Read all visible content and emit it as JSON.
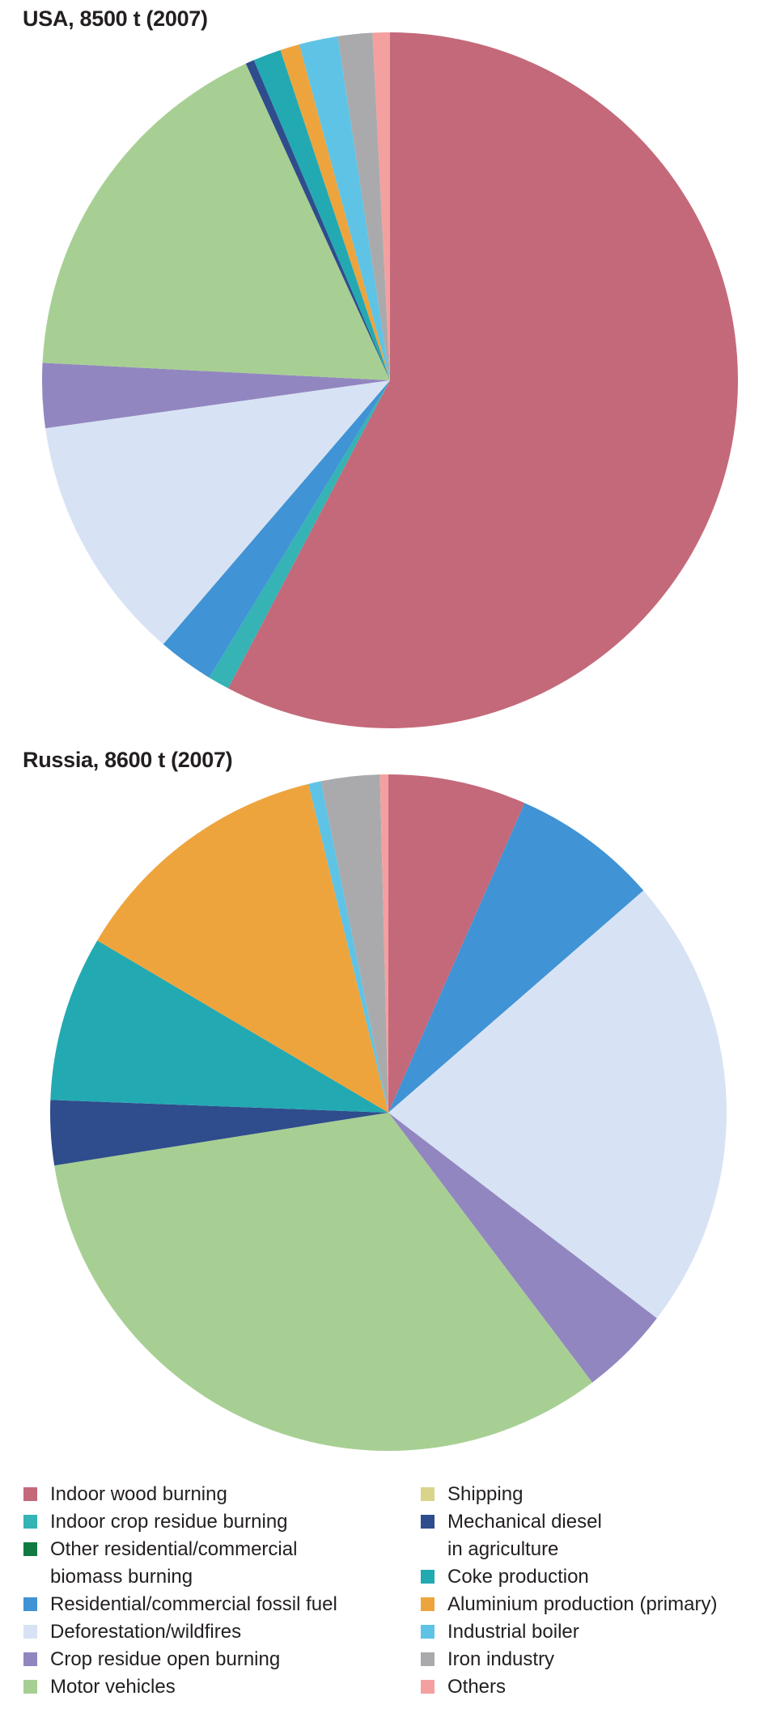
{
  "page": {
    "background": "#ffffff",
    "text_color": "#231f20"
  },
  "chart_data": [
    {
      "type": "pie",
      "id": "usa",
      "title": "USA, 8500 t (2007)",
      "country": "USA",
      "total": "8500 t",
      "year": "(2007)",
      "units": "percent of total",
      "start_angle_deg": 0,
      "direction": "clockwise",
      "slices": [
        {
          "label": "Indoor wood burning",
          "percent": 57.7,
          "color": "#c4697a"
        },
        {
          "label": "Indoor crop residue burning",
          "percent": 1.0,
          "color": "#35b3b5"
        },
        {
          "label": "Residential/commercial fossil fuel",
          "percent": 2.6,
          "color": "#4093d4"
        },
        {
          "label": "Deforestation/wildfires",
          "percent": 11.5,
          "color": "#d7e3f4"
        },
        {
          "label": "Crop residue open burning",
          "percent": 3.0,
          "color": "#9286c0"
        },
        {
          "label": "Motor vehicles",
          "percent": 17.4,
          "color": "#a7cf93"
        },
        {
          "label": "Mechanical diesel in agriculture",
          "percent": 0.4,
          "color": "#2f4c8c"
        },
        {
          "label": "Coke production",
          "percent": 1.3,
          "color": "#23a9b2"
        },
        {
          "label": "Aluminium production (primary)",
          "percent": 0.9,
          "color": "#eea43d"
        },
        {
          "label": "Industrial boiler",
          "percent": 1.8,
          "color": "#5fc3e5"
        },
        {
          "label": "Iron industry",
          "percent": 1.6,
          "color": "#aaaaac"
        },
        {
          "label": "Others",
          "percent": 0.8,
          "color": "#f4a0a0"
        }
      ]
    },
    {
      "type": "pie",
      "id": "russia",
      "title": "Russia, 8600 t (2007)",
      "country": "Russia",
      "total": "8600 t",
      "year": "(2007)",
      "units": "percent of total",
      "start_angle_deg": 0,
      "direction": "clockwise",
      "slices": [
        {
          "label": "Indoor wood burning",
          "percent": 6.6,
          "color": "#c4697a"
        },
        {
          "label": "Residential/commercial fossil fuel",
          "percent": 7.0,
          "color": "#4093d4"
        },
        {
          "label": "Deforestation/wildfires",
          "percent": 21.8,
          "color": "#d7e3f4"
        },
        {
          "label": "Crop residue open burning",
          "percent": 4.3,
          "color": "#9286c0"
        },
        {
          "label": "Motor vehicles",
          "percent": 32.8,
          "color": "#a7cf93"
        },
        {
          "label": "Mechanical diesel in agriculture",
          "percent": 3.1,
          "color": "#2f4c8c"
        },
        {
          "label": "Coke production",
          "percent": 7.9,
          "color": "#23a9b2"
        },
        {
          "label": "Aluminium production (primary)",
          "percent": 12.7,
          "color": "#eea43d"
        },
        {
          "label": "Industrial boiler",
          "percent": 0.6,
          "color": "#5fc3e5"
        },
        {
          "label": "Iron industry",
          "percent": 2.8,
          "color": "#aaaaac"
        },
        {
          "label": "Others",
          "percent": 0.4,
          "color": "#f4a0a0"
        }
      ]
    }
  ],
  "legend": {
    "columns": [
      [
        {
          "lines": [
            "Indoor wood burning"
          ],
          "color": "#c4697a"
        },
        {
          "lines": [
            "Indoor crop residue burning"
          ],
          "color": "#35b3b5"
        },
        {
          "lines": [
            "Other residential/commercial",
            "biomass burning"
          ],
          "color": "#107a42"
        },
        {
          "lines": [
            "Residential/commercial fossil fuel"
          ],
          "color": "#4093d4"
        },
        {
          "lines": [
            "Deforestation/wildfires"
          ],
          "color": "#d7e3f4"
        },
        {
          "lines": [
            "Crop residue open burning"
          ],
          "color": "#9286c0"
        },
        {
          "lines": [
            "Motor vehicles"
          ],
          "color": "#a7cf93"
        }
      ],
      [
        {
          "lines": [
            "Shipping"
          ],
          "color": "#d8d48a"
        },
        {
          "lines": [
            "Mechanical diesel",
            "in agriculture"
          ],
          "color": "#2f4c8c"
        },
        {
          "lines": [
            "Coke production"
          ],
          "color": "#23a9b2"
        },
        {
          "lines": [
            "Aluminium production (primary)"
          ],
          "color": "#eea43d"
        },
        {
          "lines": [
            "Industrial boiler"
          ],
          "color": "#5fc3e5"
        },
        {
          "lines": [
            "Iron industry"
          ],
          "color": "#aaaaac"
        },
        {
          "lines": [
            "Others"
          ],
          "color": "#f4a0a0"
        }
      ]
    ]
  }
}
